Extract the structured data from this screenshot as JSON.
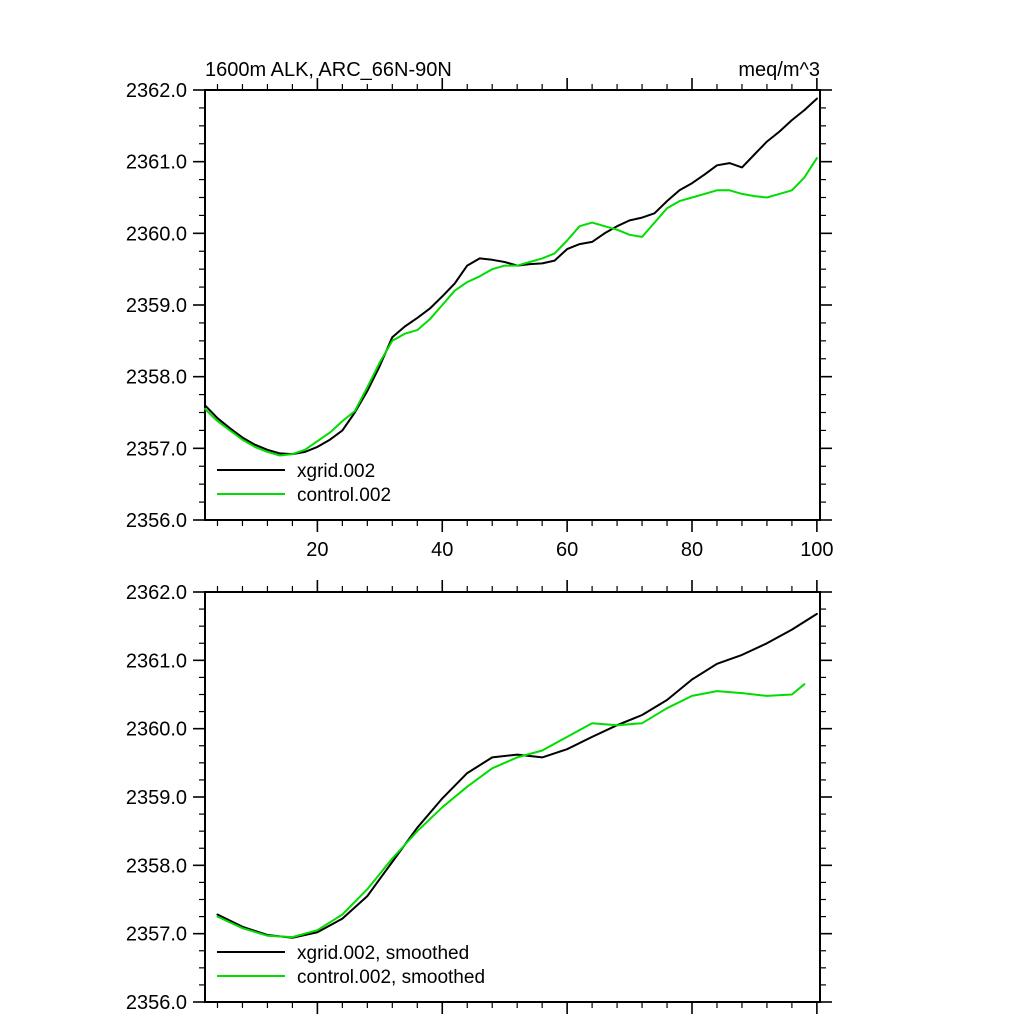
{
  "page": {
    "background": "#ffffff"
  },
  "chart_data": [
    {
      "type": "line",
      "title": "1600m ALK, ARC_66N-90N",
      "units_label": "meq/m^3",
      "xlim": [
        2,
        100.5
      ],
      "ylim": [
        2356.0,
        2362.0
      ],
      "xticks": [
        20,
        40,
        60,
        80,
        100
      ],
      "x_minor_step": 4,
      "ytick_step": 1.0,
      "y_minor_step": 0.25,
      "ytick_decimals": 1,
      "show_x_tick_labels": true,
      "grid": false,
      "legend_position": "lower-left-inside",
      "legend": [
        {
          "label": "xgrid.002",
          "color": "#000000"
        },
        {
          "label": "control.002",
          "color": "#00dd00"
        }
      ],
      "series": [
        {
          "name": "xgrid.002",
          "color": "#000000",
          "x": [
            2,
            4,
            6,
            8,
            10,
            12,
            14,
            16,
            18,
            20,
            22,
            24,
            26,
            28,
            30,
            32,
            34,
            36,
            38,
            40,
            42,
            44,
            46,
            48,
            50,
            52,
            54,
            56,
            58,
            60,
            62,
            64,
            66,
            68,
            70,
            72,
            74,
            76,
            78,
            80,
            82,
            84,
            86,
            88,
            90,
            92,
            94,
            96,
            98,
            100
          ],
          "values": [
            2357.6,
            2357.42,
            2357.28,
            2357.15,
            2357.05,
            2356.98,
            2356.93,
            2356.92,
            2356.95,
            2357.02,
            2357.12,
            2357.25,
            2357.5,
            2357.8,
            2358.15,
            2358.55,
            2358.7,
            2358.82,
            2358.95,
            2359.12,
            2359.3,
            2359.55,
            2359.65,
            2359.63,
            2359.6,
            2359.55,
            2359.57,
            2359.58,
            2359.62,
            2359.78,
            2359.85,
            2359.88,
            2360.0,
            2360.1,
            2360.18,
            2360.22,
            2360.28,
            2360.45,
            2360.6,
            2360.7,
            2360.82,
            2360.95,
            2360.98,
            2360.92,
            2361.1,
            2361.28,
            2361.42,
            2361.58,
            2361.72,
            2361.88
          ]
        },
        {
          "name": "control.002",
          "color": "#00dd00",
          "x": [
            2,
            4,
            6,
            8,
            10,
            12,
            14,
            16,
            18,
            20,
            22,
            24,
            26,
            28,
            30,
            32,
            34,
            36,
            38,
            40,
            42,
            44,
            46,
            48,
            50,
            52,
            54,
            56,
            58,
            60,
            62,
            64,
            66,
            68,
            70,
            72,
            74,
            76,
            78,
            80,
            82,
            84,
            86,
            88,
            90,
            92,
            94,
            96,
            98,
            100
          ],
          "values": [
            2357.55,
            2357.38,
            2357.25,
            2357.12,
            2357.02,
            2356.95,
            2356.9,
            2356.92,
            2356.98,
            2357.1,
            2357.22,
            2357.38,
            2357.52,
            2357.85,
            2358.2,
            2358.5,
            2358.6,
            2358.65,
            2358.8,
            2359.0,
            2359.2,
            2359.32,
            2359.4,
            2359.5,
            2359.55,
            2359.55,
            2359.6,
            2359.65,
            2359.72,
            2359.9,
            2360.1,
            2360.15,
            2360.1,
            2360.05,
            2359.98,
            2359.95,
            2360.15,
            2360.35,
            2360.45,
            2360.5,
            2360.55,
            2360.6,
            2360.6,
            2360.55,
            2360.52,
            2360.5,
            2360.55,
            2360.6,
            2360.78,
            2361.05
          ]
        }
      ]
    },
    {
      "type": "line",
      "title": "",
      "units_label": "",
      "xlim": [
        2,
        100.5
      ],
      "ylim": [
        2356.0,
        2362.0
      ],
      "xticks": [
        20,
        40,
        60,
        80,
        100
      ],
      "x_minor_step": 4,
      "ytick_step": 1.0,
      "y_minor_step": 0.25,
      "ytick_decimals": 1,
      "show_x_tick_labels": false,
      "grid": false,
      "legend_position": "lower-left-inside",
      "legend": [
        {
          "label": "xgrid.002, smoothed",
          "color": "#000000"
        },
        {
          "label": "control.002, smoothed",
          "color": "#00dd00"
        }
      ],
      "series": [
        {
          "name": "xgrid.002, smoothed",
          "color": "#000000",
          "x": [
            4,
            8,
            12,
            16,
            20,
            24,
            28,
            32,
            36,
            40,
            44,
            48,
            52,
            56,
            60,
            64,
            68,
            72,
            76,
            80,
            84,
            88,
            92,
            96,
            100
          ],
          "values": [
            2357.28,
            2357.1,
            2356.98,
            2356.94,
            2357.02,
            2357.22,
            2357.55,
            2358.05,
            2358.55,
            2358.98,
            2359.35,
            2359.58,
            2359.62,
            2359.58,
            2359.7,
            2359.88,
            2360.05,
            2360.2,
            2360.42,
            2360.72,
            2360.95,
            2361.08,
            2361.25,
            2361.45,
            2361.68
          ]
        },
        {
          "name": "control.002, smoothed",
          "color": "#00dd00",
          "x": [
            4,
            8,
            12,
            16,
            20,
            24,
            28,
            32,
            36,
            40,
            44,
            48,
            52,
            56,
            60,
            64,
            68,
            72,
            76,
            80,
            84,
            88,
            92,
            96,
            98
          ],
          "values": [
            2357.25,
            2357.08,
            2356.97,
            2356.95,
            2357.05,
            2357.28,
            2357.65,
            2358.1,
            2358.5,
            2358.85,
            2359.15,
            2359.42,
            2359.58,
            2359.68,
            2359.88,
            2360.08,
            2360.05,
            2360.08,
            2360.3,
            2360.48,
            2360.55,
            2360.52,
            2360.48,
            2360.5,
            2360.65
          ]
        }
      ]
    }
  ]
}
